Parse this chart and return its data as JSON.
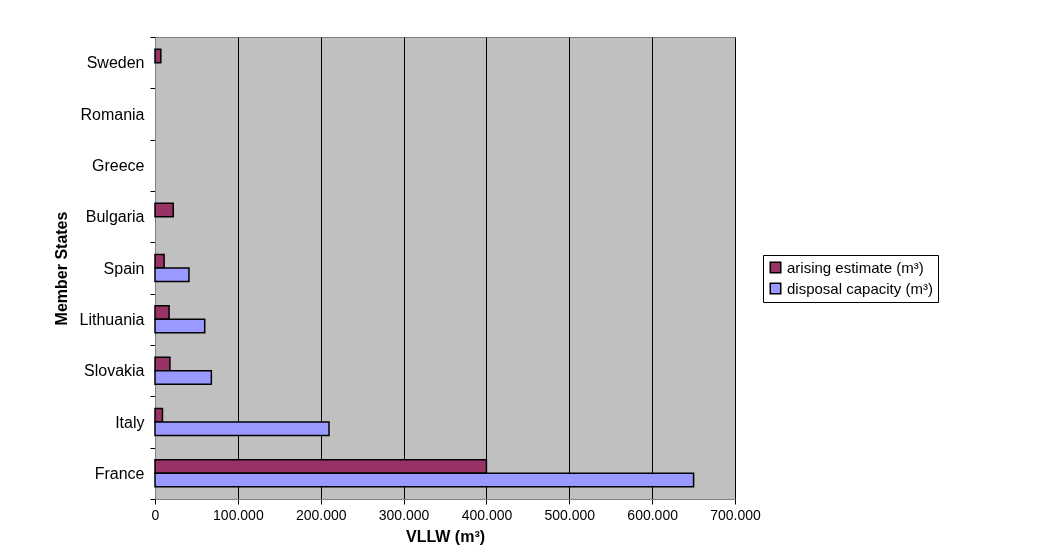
{
  "chart_data": {
    "type": "bar",
    "orientation": "horizontal",
    "xlabel": "VLLW (m³)",
    "ylabel": "Member States",
    "categories": [
      "Sweden",
      "Romania",
      "Greece",
      "Bulgaria",
      "Spain",
      "Lithuania",
      "Slovakia",
      "Italy",
      "France"
    ],
    "series": [
      {
        "name": "arising estimate (m³)",
        "color": "#993366",
        "values": [
          7000,
          null,
          null,
          22000,
          11000,
          17000,
          18000,
          9000,
          400000
        ]
      },
      {
        "name": "disposal capacity (m³)",
        "color": "#9999ff",
        "values": [
          null,
          null,
          null,
          null,
          41000,
          60000,
          68000,
          210000,
          650000
        ]
      }
    ],
    "xlim": [
      0,
      700000
    ],
    "xticks": [
      0,
      {
        "value": 100000,
        "label": "100.000"
      },
      {
        "value": 200000,
        "label": "200.000"
      },
      {
        "value": 300000,
        "label": "300.000"
      },
      {
        "value": 400000,
        "label": "400.000"
      },
      {
        "value": 500000,
        "label": "500.000"
      },
      {
        "value": 600000,
        "label": "600.000"
      },
      {
        "value": 700000,
        "label": "700.000"
      }
    ],
    "grid": "x",
    "legend": "right"
  }
}
